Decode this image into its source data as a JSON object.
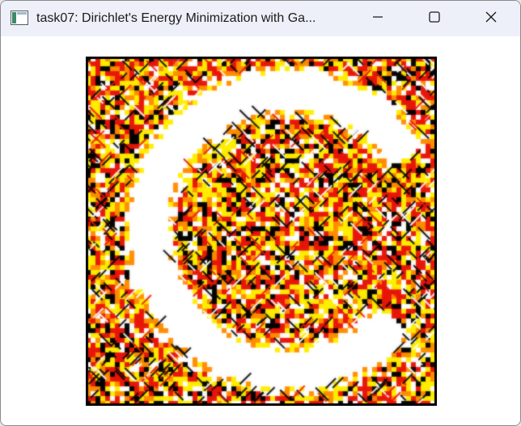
{
  "window": {
    "title": "task07: Dirichlet's Energy Minimization with Ga...",
    "app_icon": "app-window-icon",
    "controls": {
      "minimize_icon": "minimize-icon",
      "maximize_icon": "maximize-icon",
      "close_icon": "close-icon"
    }
  },
  "viewport": {
    "content": "noise-texture-with-white-ring-mask",
    "colors": {
      "black": "#000000",
      "red": "#e8140a",
      "orange": "#ff8c00",
      "yellow": "#ffee00",
      "white": "#ffffff"
    }
  }
}
